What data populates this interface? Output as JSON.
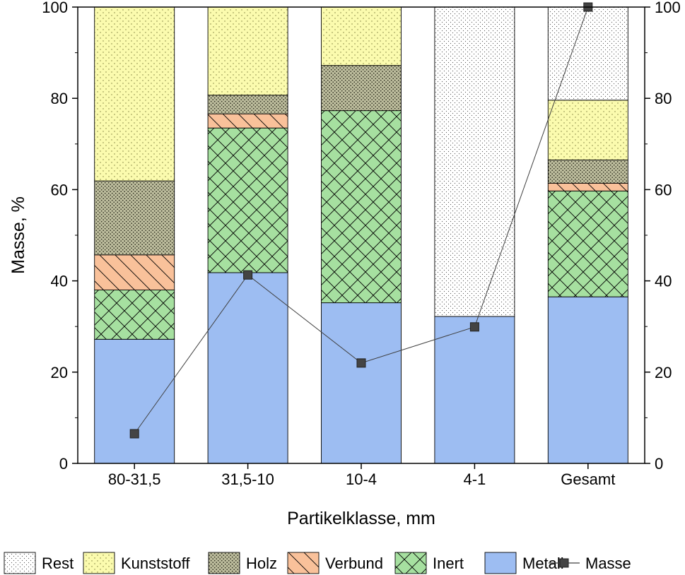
{
  "chart_data": {
    "type": "bar",
    "stacked": true,
    "categories": [
      "80-31,5",
      "31,5-10",
      "10-4",
      "4-1",
      "Gesamt"
    ],
    "xlabel": "Partikelklasse, mm",
    "ylabel": "Masse, %",
    "ylim": [
      0,
      100
    ],
    "y2lim": [
      0,
      100
    ],
    "yticks": [
      0,
      20,
      40,
      60,
      80,
      100
    ],
    "grid": false,
    "legend_position": "bottom",
    "series": [
      {
        "name": "Metall",
        "values": [
          27.2,
          41.8,
          35.2,
          32.2,
          36.5
        ],
        "color": "#9dbdf2",
        "pattern": "solid"
      },
      {
        "name": "Inert",
        "values": [
          10.8,
          31.7,
          42.1,
          0,
          23.2
        ],
        "color": "#a6e0a0",
        "pattern": "crosshatch"
      },
      {
        "name": "Verbund",
        "values": [
          7.7,
          3.1,
          0,
          0,
          1.7
        ],
        "color": "#f9c19a",
        "pattern": "diagonal"
      },
      {
        "name": "Holz",
        "values": [
          16.2,
          4.1,
          9.9,
          0,
          5.1
        ],
        "color": "#bfbf9f",
        "pattern": "dots-dense"
      },
      {
        "name": "Kunststoff",
        "values": [
          38.1,
          19.3,
          12.8,
          0,
          13.1
        ],
        "color": "#fbfbae",
        "pattern": "dots-sparse"
      },
      {
        "name": "Rest",
        "values": [
          0,
          0,
          0,
          67.8,
          20.4
        ],
        "color": "#ffffff",
        "pattern": "dots-fine"
      }
    ],
    "line_series": {
      "name": "Masse",
      "axis": "right",
      "values": [
        6.5,
        41.3,
        22.0,
        29.9,
        100
      ],
      "color": "#404040"
    },
    "legend_order": [
      "Rest",
      "Kunststoff",
      "Holz",
      "Verbund",
      "Inert",
      "Metall",
      "Masse"
    ]
  }
}
